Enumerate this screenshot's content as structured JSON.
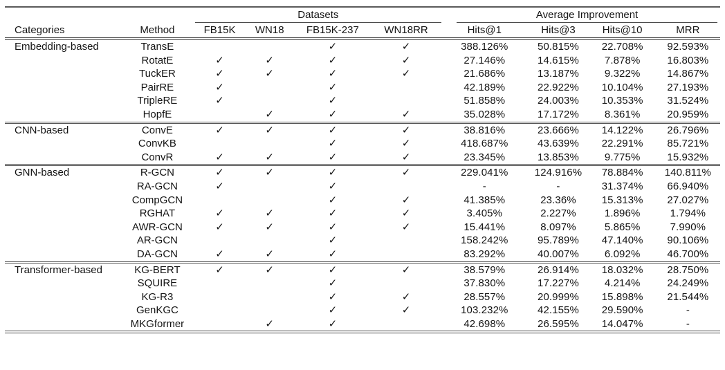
{
  "table": {
    "headers": {
      "categories": "Categories",
      "method": "Method"
    },
    "groups": [
      {
        "label": "Datasets",
        "columns": [
          "FB15K",
          "WN18",
          "FB15K-237",
          "WN18RR"
        ]
      },
      {
        "label": "Average Improvement",
        "columns": [
          "Hits@1",
          "Hits@3",
          "Hits@10",
          "MRR"
        ]
      }
    ],
    "check_glyph": "✓",
    "empty_value": "-",
    "rule_color": "#4a4a4a",
    "sections": [
      {
        "category": "Embedding-based",
        "rows": [
          {
            "method": "TransE",
            "datasets": [
              false,
              false,
              true,
              true
            ],
            "values": [
              "388.126%",
              "50.815%",
              "22.708%",
              "92.593%"
            ]
          },
          {
            "method": "RotatE",
            "datasets": [
              true,
              true,
              true,
              true
            ],
            "values": [
              "27.146%",
              "14.615%",
              "7.878%",
              "16.803%"
            ]
          },
          {
            "method": "TuckER",
            "datasets": [
              true,
              true,
              true,
              true
            ],
            "values": [
              "21.686%",
              "13.187%",
              "9.322%",
              "14.867%"
            ]
          },
          {
            "method": "PairRE",
            "datasets": [
              true,
              false,
              true,
              false
            ],
            "values": [
              "42.189%",
              "22.922%",
              "10.104%",
              "27.193%"
            ]
          },
          {
            "method": "TripleRE",
            "datasets": [
              true,
              false,
              true,
              false
            ],
            "values": [
              "51.858%",
              "24.003%",
              "10.353%",
              "31.524%"
            ]
          },
          {
            "method": "HopfE",
            "datasets": [
              false,
              true,
              true,
              true
            ],
            "values": [
              "35.028%",
              "17.172%",
              "8.361%",
              "20.959%"
            ]
          }
        ]
      },
      {
        "category": "CNN-based",
        "rows": [
          {
            "method": "ConvE",
            "datasets": [
              true,
              true,
              true,
              true
            ],
            "values": [
              "38.816%",
              "23.666%",
              "14.122%",
              "26.796%"
            ]
          },
          {
            "method": "ConvKB",
            "datasets": [
              false,
              false,
              true,
              true
            ],
            "values": [
              "418.687%",
              "43.639%",
              "22.291%",
              "85.721%"
            ]
          },
          {
            "method": "ConvR",
            "datasets": [
              true,
              true,
              true,
              true
            ],
            "values": [
              "23.345%",
              "13.853%",
              "9.775%",
              "15.932%"
            ]
          }
        ]
      },
      {
        "category": "GNN-based",
        "rows": [
          {
            "method": "R-GCN",
            "datasets": [
              true,
              true,
              true,
              true
            ],
            "values": [
              "229.041%",
              "124.916%",
              "78.884%",
              "140.811%"
            ]
          },
          {
            "method": "RA-GCN",
            "datasets": [
              true,
              false,
              true,
              false
            ],
            "values": [
              "-",
              "-",
              "31.374%",
              "66.940%"
            ]
          },
          {
            "method": "CompGCN",
            "datasets": [
              false,
              false,
              true,
              true
            ],
            "values": [
              "41.385%",
              "23.36%",
              "15.313%",
              "27.027%"
            ]
          },
          {
            "method": "RGHAT",
            "datasets": [
              true,
              true,
              true,
              true
            ],
            "values": [
              "3.405%",
              "2.227%",
              "1.896%",
              "1.794%"
            ]
          },
          {
            "method": "AWR-GCN",
            "datasets": [
              true,
              true,
              true,
              true
            ],
            "values": [
              "15.441%",
              "8.097%",
              "5.865%",
              "7.990%"
            ]
          },
          {
            "method": "AR-GCN",
            "datasets": [
              false,
              false,
              true,
              false
            ],
            "values": [
              "158.242%",
              "95.789%",
              "47.140%",
              "90.106%"
            ]
          },
          {
            "method": "DA-GCN",
            "datasets": [
              true,
              true,
              true,
              false
            ],
            "values": [
              "83.292%",
              "40.007%",
              "6.092%",
              "46.700%"
            ]
          }
        ]
      },
      {
        "category": "Transformer-based",
        "rows": [
          {
            "method": "KG-BERT",
            "datasets": [
              true,
              true,
              true,
              true
            ],
            "values": [
              "38.579%",
              "26.914%",
              "18.032%",
              "28.750%"
            ]
          },
          {
            "method": "SQUIRE",
            "datasets": [
              false,
              false,
              true,
              false
            ],
            "values": [
              "37.830%",
              "17.227%",
              "4.214%",
              "24.249%"
            ]
          },
          {
            "method": "KG-R3",
            "datasets": [
              false,
              false,
              true,
              true
            ],
            "values": [
              "28.557%",
              "20.999%",
              "15.898%",
              "21.544%"
            ]
          },
          {
            "method": "GenKGC",
            "datasets": [
              false,
              false,
              true,
              true
            ],
            "values": [
              "103.232%",
              "42.155%",
              "29.590%",
              "-"
            ]
          },
          {
            "method": "MKGformer",
            "datasets": [
              false,
              true,
              true,
              false
            ],
            "values": [
              "42.698%",
              "26.595%",
              "14.047%",
              "-"
            ]
          }
        ]
      }
    ]
  }
}
